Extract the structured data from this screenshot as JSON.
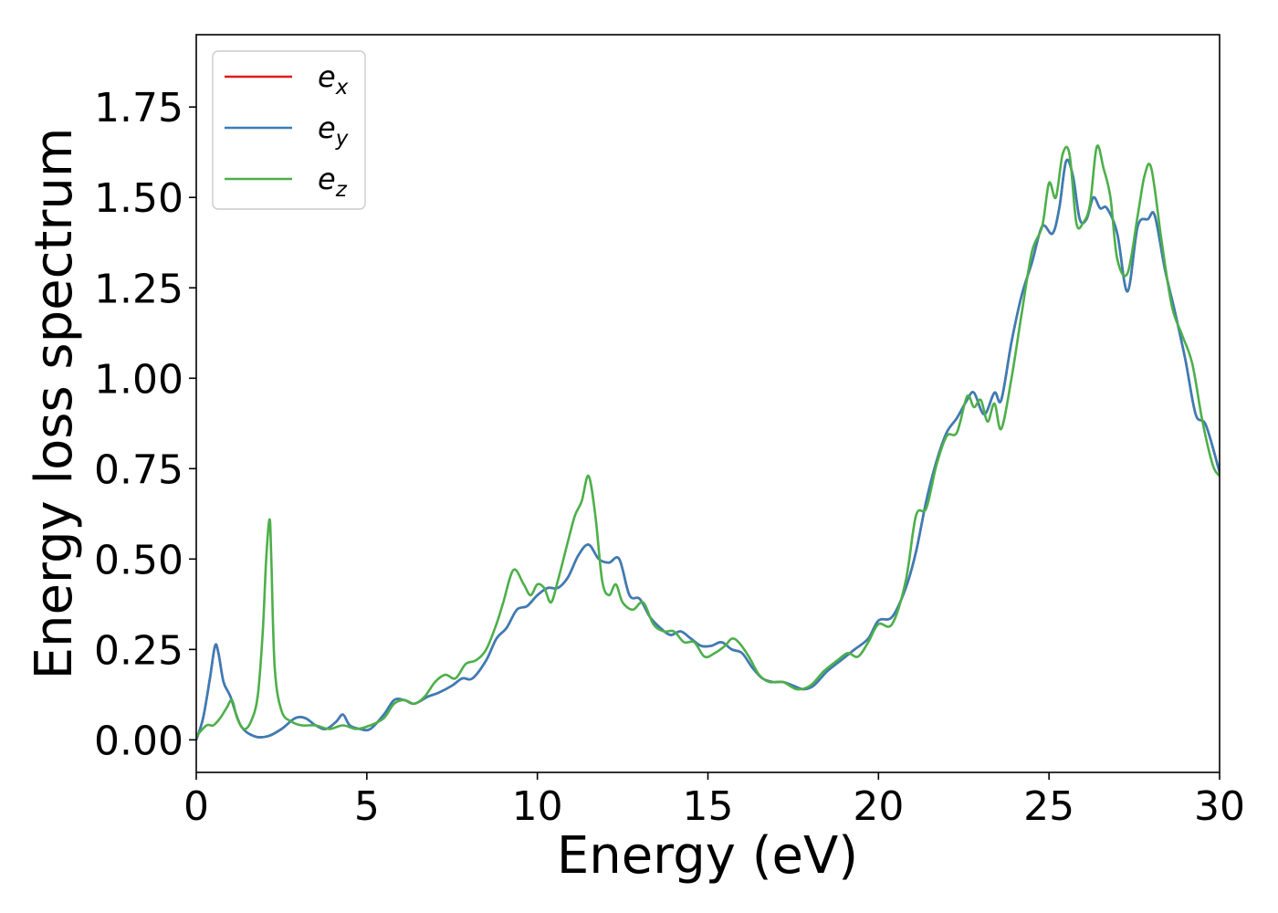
{
  "chart_data": {
    "type": "line",
    "title": "",
    "xlabel": "Energy (eV)",
    "ylabel": "Energy loss spectrum",
    "xlim": [
      0,
      30
    ],
    "ylim": [
      -0.09,
      1.95
    ],
    "xticks": [
      0,
      5,
      10,
      15,
      20,
      25,
      30
    ],
    "xtick_labels": [
      "0",
      "5",
      "10",
      "15",
      "20",
      "25",
      "30"
    ],
    "yticks": [
      0,
      0.25,
      0.5,
      0.75,
      1.0,
      1.25,
      1.5,
      1.75
    ],
    "ytick_labels": [
      "0.00",
      "0.25",
      "0.50",
      "0.75",
      "1.00",
      "1.25",
      "1.50",
      "1.75"
    ],
    "grid": false,
    "legend_position": "top-left",
    "series": [
      {
        "name": "e",
        "subscript": "x",
        "color": "#e41a1c",
        "x": [
          0,
          0.2,
          0.4,
          0.55,
          0.65,
          0.8,
          1.0,
          1.3,
          1.7,
          2.1,
          2.5,
          2.9,
          3.2,
          3.5,
          3.8,
          4.1,
          4.3,
          4.5,
          4.8,
          5.1,
          5.5,
          5.8,
          6.1,
          6.4,
          6.8,
          7.1,
          7.5,
          7.8,
          8.1,
          8.5,
          8.8,
          9.1,
          9.4,
          9.7,
          10.0,
          10.3,
          10.6,
          10.9,
          11.2,
          11.5,
          11.8,
          12.1,
          12.4,
          12.7,
          13.0,
          13.3,
          13.6,
          13.9,
          14.2,
          14.5,
          14.8,
          15.1,
          15.4,
          15.7,
          16.0,
          16.3,
          16.6,
          16.9,
          17.2,
          17.5,
          17.8,
          18.1,
          18.5,
          18.9,
          19.3,
          19.7,
          20.0,
          20.4,
          20.8,
          21.1,
          21.4,
          21.7,
          22.0,
          22.3,
          22.6,
          22.8,
          23.1,
          23.4,
          23.6,
          23.9,
          24.2,
          24.5,
          24.8,
          25.1,
          25.3,
          25.5,
          25.7,
          25.9,
          26.1,
          26.3,
          26.5,
          26.7,
          27.0,
          27.3,
          27.6,
          27.9,
          28.1,
          28.4,
          28.7,
          29.0,
          29.3,
          29.6,
          30.0
        ],
        "y": [
          0.0,
          0.06,
          0.17,
          0.26,
          0.24,
          0.16,
          0.12,
          0.04,
          0.01,
          0.01,
          0.03,
          0.06,
          0.06,
          0.04,
          0.03,
          0.05,
          0.07,
          0.04,
          0.03,
          0.03,
          0.07,
          0.11,
          0.11,
          0.1,
          0.12,
          0.13,
          0.15,
          0.17,
          0.17,
          0.22,
          0.28,
          0.31,
          0.36,
          0.37,
          0.4,
          0.42,
          0.42,
          0.45,
          0.51,
          0.54,
          0.5,
          0.49,
          0.5,
          0.4,
          0.39,
          0.34,
          0.31,
          0.29,
          0.3,
          0.28,
          0.26,
          0.26,
          0.27,
          0.25,
          0.24,
          0.2,
          0.17,
          0.16,
          0.16,
          0.15,
          0.14,
          0.15,
          0.19,
          0.22,
          0.25,
          0.28,
          0.33,
          0.34,
          0.42,
          0.52,
          0.66,
          0.77,
          0.85,
          0.89,
          0.94,
          0.96,
          0.9,
          0.96,
          0.94,
          1.1,
          1.23,
          1.32,
          1.42,
          1.4,
          1.47,
          1.6,
          1.56,
          1.44,
          1.44,
          1.5,
          1.47,
          1.47,
          1.4,
          1.24,
          1.42,
          1.44,
          1.45,
          1.3,
          1.18,
          1.05,
          0.9,
          0.87,
          0.74
        ]
      },
      {
        "name": "e",
        "subscript": "y",
        "color": "#377eb8",
        "x": [
          0,
          0.2,
          0.4,
          0.55,
          0.65,
          0.8,
          1.0,
          1.3,
          1.7,
          2.1,
          2.5,
          2.9,
          3.2,
          3.5,
          3.8,
          4.1,
          4.3,
          4.5,
          4.8,
          5.1,
          5.5,
          5.8,
          6.1,
          6.4,
          6.8,
          7.1,
          7.5,
          7.8,
          8.1,
          8.5,
          8.8,
          9.1,
          9.4,
          9.7,
          10.0,
          10.3,
          10.6,
          10.9,
          11.2,
          11.5,
          11.8,
          12.1,
          12.4,
          12.7,
          13.0,
          13.3,
          13.6,
          13.9,
          14.2,
          14.5,
          14.8,
          15.1,
          15.4,
          15.7,
          16.0,
          16.3,
          16.6,
          16.9,
          17.2,
          17.5,
          17.8,
          18.1,
          18.5,
          18.9,
          19.3,
          19.7,
          20.0,
          20.4,
          20.8,
          21.1,
          21.4,
          21.7,
          22.0,
          22.3,
          22.6,
          22.8,
          23.1,
          23.4,
          23.6,
          23.9,
          24.2,
          24.5,
          24.8,
          25.1,
          25.3,
          25.5,
          25.7,
          25.9,
          26.1,
          26.3,
          26.5,
          26.7,
          27.0,
          27.3,
          27.6,
          27.9,
          28.1,
          28.4,
          28.7,
          29.0,
          29.3,
          29.6,
          30.0
        ],
        "y": [
          0.0,
          0.06,
          0.17,
          0.26,
          0.24,
          0.16,
          0.12,
          0.04,
          0.01,
          0.01,
          0.03,
          0.06,
          0.06,
          0.04,
          0.03,
          0.05,
          0.07,
          0.04,
          0.03,
          0.03,
          0.07,
          0.11,
          0.11,
          0.1,
          0.12,
          0.13,
          0.15,
          0.17,
          0.17,
          0.22,
          0.28,
          0.31,
          0.36,
          0.37,
          0.4,
          0.42,
          0.42,
          0.45,
          0.51,
          0.54,
          0.5,
          0.49,
          0.5,
          0.4,
          0.39,
          0.34,
          0.31,
          0.29,
          0.3,
          0.28,
          0.26,
          0.26,
          0.27,
          0.25,
          0.24,
          0.2,
          0.17,
          0.16,
          0.16,
          0.15,
          0.14,
          0.15,
          0.19,
          0.22,
          0.25,
          0.28,
          0.33,
          0.34,
          0.42,
          0.52,
          0.66,
          0.77,
          0.85,
          0.89,
          0.94,
          0.96,
          0.9,
          0.96,
          0.94,
          1.1,
          1.23,
          1.32,
          1.42,
          1.4,
          1.47,
          1.6,
          1.56,
          1.44,
          1.44,
          1.5,
          1.47,
          1.47,
          1.4,
          1.24,
          1.42,
          1.44,
          1.45,
          1.3,
          1.18,
          1.05,
          0.9,
          0.87,
          0.74
        ]
      },
      {
        "name": "e",
        "subscript": "z",
        "color": "#4daf4a",
        "x": [
          0,
          0.3,
          0.5,
          0.7,
          0.9,
          1.05,
          1.2,
          1.4,
          1.6,
          1.8,
          1.95,
          2.05,
          2.15,
          2.2,
          2.3,
          2.5,
          2.8,
          3.1,
          3.5,
          3.9,
          4.3,
          4.7,
          5.1,
          5.5,
          5.8,
          6.1,
          6.4,
          6.7,
          7.0,
          7.3,
          7.6,
          7.9,
          8.2,
          8.5,
          8.8,
          9.0,
          9.3,
          9.6,
          9.8,
          10.0,
          10.2,
          10.4,
          10.6,
          10.9,
          11.1,
          11.3,
          11.5,
          11.7,
          11.9,
          12.1,
          12.3,
          12.5,
          12.8,
          13.1,
          13.4,
          13.7,
          14.0,
          14.3,
          14.6,
          14.9,
          15.2,
          15.5,
          15.7,
          15.9,
          16.2,
          16.5,
          16.8,
          17.2,
          17.6,
          18.0,
          18.4,
          18.8,
          19.1,
          19.4,
          19.7,
          20.0,
          20.4,
          20.8,
          21.1,
          21.4,
          21.7,
          22.0,
          22.3,
          22.6,
          22.8,
          23.0,
          23.2,
          23.4,
          23.6,
          23.9,
          24.2,
          24.5,
          24.8,
          25.0,
          25.2,
          25.4,
          25.6,
          25.8,
          26.0,
          26.2,
          26.4,
          26.6,
          26.8,
          27.0,
          27.3,
          27.6,
          27.8,
          28.0,
          28.3,
          28.6,
          28.9,
          29.2,
          29.5,
          29.8,
          30.0
        ],
        "y": [
          0.01,
          0.04,
          0.04,
          0.06,
          0.09,
          0.11,
          0.06,
          0.03,
          0.05,
          0.12,
          0.3,
          0.5,
          0.61,
          0.5,
          0.2,
          0.08,
          0.05,
          0.04,
          0.04,
          0.03,
          0.04,
          0.03,
          0.04,
          0.06,
          0.1,
          0.11,
          0.1,
          0.12,
          0.16,
          0.18,
          0.17,
          0.21,
          0.22,
          0.25,
          0.32,
          0.38,
          0.47,
          0.43,
          0.4,
          0.43,
          0.42,
          0.38,
          0.44,
          0.55,
          0.62,
          0.66,
          0.73,
          0.62,
          0.44,
          0.4,
          0.43,
          0.38,
          0.36,
          0.38,
          0.32,
          0.3,
          0.3,
          0.27,
          0.27,
          0.23,
          0.24,
          0.26,
          0.28,
          0.27,
          0.23,
          0.18,
          0.16,
          0.16,
          0.14,
          0.15,
          0.19,
          0.22,
          0.24,
          0.23,
          0.27,
          0.32,
          0.32,
          0.44,
          0.62,
          0.64,
          0.76,
          0.84,
          0.85,
          0.95,
          0.92,
          0.94,
          0.88,
          0.93,
          0.86,
          1.0,
          1.18,
          1.35,
          1.42,
          1.54,
          1.5,
          1.62,
          1.62,
          1.43,
          1.43,
          1.48,
          1.64,
          1.58,
          1.5,
          1.33,
          1.29,
          1.45,
          1.56,
          1.58,
          1.38,
          1.2,
          1.12,
          1.04,
          0.88,
          0.76,
          0.73
        ]
      }
    ]
  }
}
